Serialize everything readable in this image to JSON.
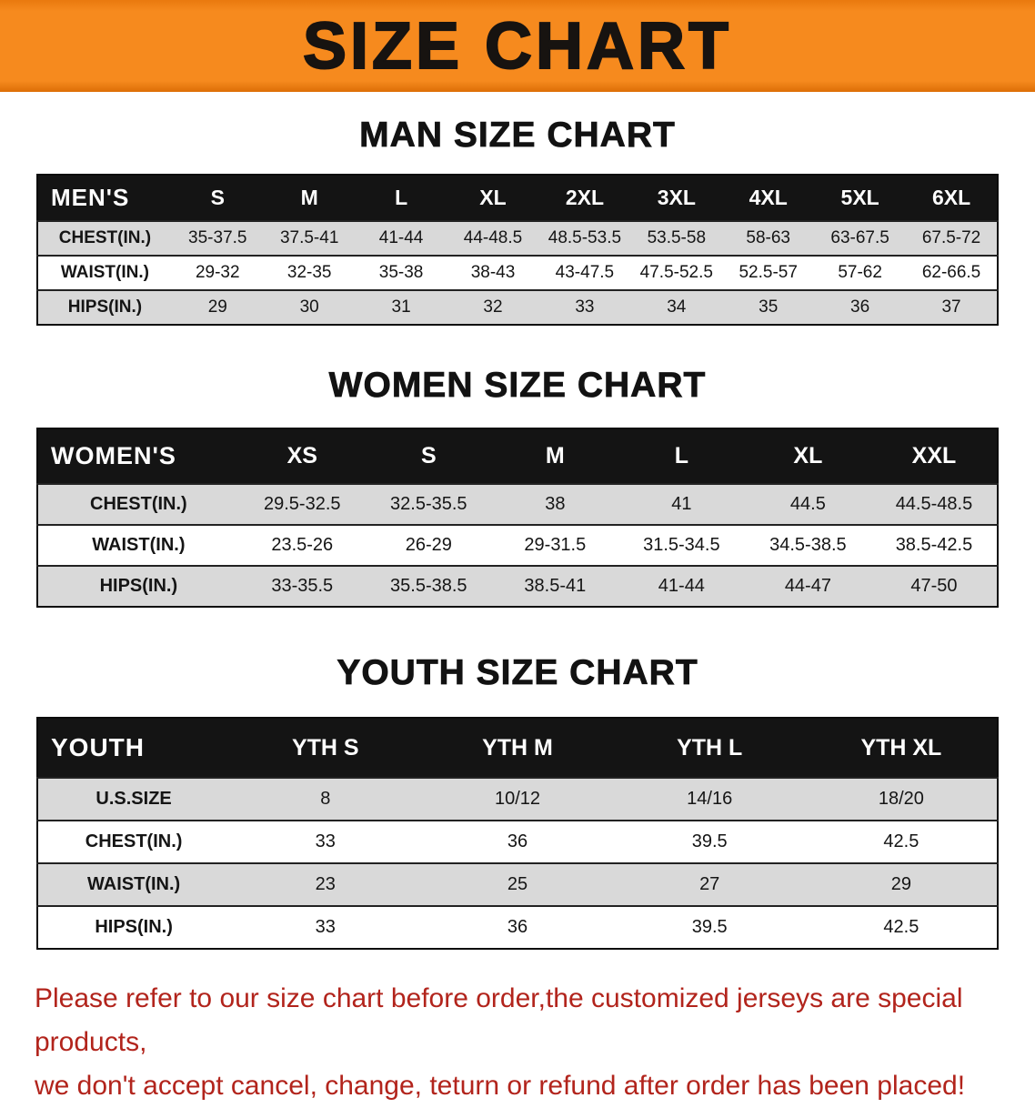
{
  "banner": {
    "title": "SIZE CHART"
  },
  "colors": {
    "banner_bg": "#f68a1e",
    "table_header_bg": "#141414",
    "table_header_text": "#ffffff",
    "row_shaded": "#d9d9d9",
    "row_plain": "#ffffff",
    "disclaimer_text": "#b2241c"
  },
  "men": {
    "heading": "MAN SIZE CHART",
    "table": {
      "corner": "MEN'S",
      "columns": [
        "S",
        "M",
        "L",
        "XL",
        "2XL",
        "3XL",
        "4XL",
        "5XL",
        "6XL"
      ],
      "rows": [
        {
          "label": "CHEST(IN.)",
          "values": [
            "35-37.5",
            "37.5-41",
            "41-44",
            "44-48.5",
            "48.5-53.5",
            "53.5-58",
            "58-63",
            "63-67.5",
            "67.5-72"
          ]
        },
        {
          "label": "WAIST(IN.)",
          "values": [
            "29-32",
            "32-35",
            "35-38",
            "38-43",
            "43-47.5",
            "47.5-52.5",
            "52.5-57",
            "57-62",
            "62-66.5"
          ]
        },
        {
          "label": "HIPS(IN.)",
          "values": [
            "29",
            "30",
            "31",
            "32",
            "33",
            "34",
            "35",
            "36",
            "37"
          ]
        }
      ]
    }
  },
  "women": {
    "heading": "WOMEN SIZE CHART",
    "table": {
      "corner": "WOMEN'S",
      "columns": [
        "XS",
        "S",
        "M",
        "L",
        "XL",
        "XXL"
      ],
      "rows": [
        {
          "label": "CHEST(IN.)",
          "values": [
            "29.5-32.5",
            "32.5-35.5",
            "38",
            "41",
            "44.5",
            "44.5-48.5"
          ]
        },
        {
          "label": "WAIST(IN.)",
          "values": [
            "23.5-26",
            "26-29",
            "29-31.5",
            "31.5-34.5",
            "34.5-38.5",
            "38.5-42.5"
          ]
        },
        {
          "label": "HIPS(IN.)",
          "values": [
            "33-35.5",
            "35.5-38.5",
            "38.5-41",
            "41-44",
            "44-47",
            "47-50"
          ]
        }
      ]
    }
  },
  "youth": {
    "heading": "YOUTH SIZE CHART",
    "table": {
      "corner": "YOUTH",
      "columns": [
        "YTH S",
        "YTH M",
        "YTH L",
        "YTH XL"
      ],
      "rows": [
        {
          "label": "U.S.SIZE",
          "values": [
            "8",
            "10/12",
            "14/16",
            "18/20"
          ]
        },
        {
          "label": "CHEST(IN.)",
          "values": [
            "33",
            "36",
            "39.5",
            "42.5"
          ]
        },
        {
          "label": "WAIST(IN.)",
          "values": [
            "23",
            "25",
            "27",
            "29"
          ]
        },
        {
          "label": "HIPS(IN.)",
          "values": [
            "33",
            "36",
            "39.5",
            "42.5"
          ]
        }
      ]
    }
  },
  "disclaimer": {
    "line1": "Please refer to our size chart before order,the customized jerseys are special products,",
    "line2": "we don't accept cancel, change, teturn or refund after order has been placed!"
  }
}
